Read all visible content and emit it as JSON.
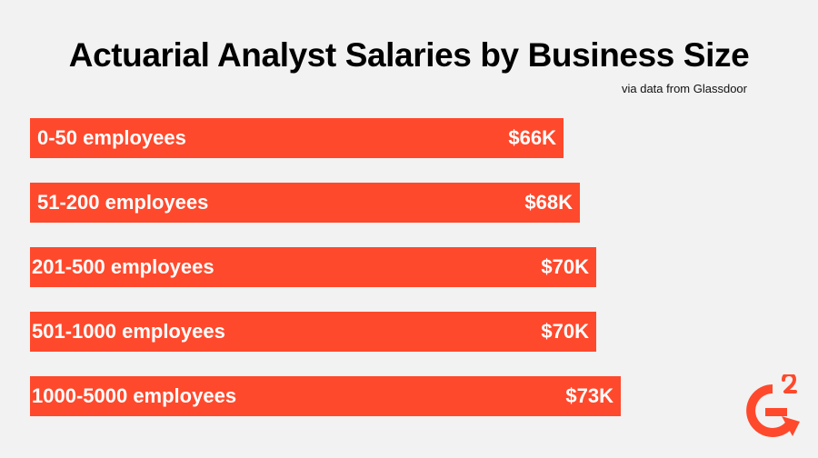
{
  "chart_data": {
    "type": "bar",
    "orientation": "horizontal",
    "title": "Actuarial Analyst Salaries by Business Size",
    "subtitle": "via data from Glassdoor",
    "categories": [
      "0-50 employees",
      "51-200 employees",
      "201-500 employees",
      "501-1000 employees",
      "1000-5000 employees"
    ],
    "values": [
      66,
      68,
      70,
      70,
      73
    ],
    "value_labels": [
      "$66K",
      "$68K",
      "$70K",
      "$70K",
      "$73K"
    ],
    "bar_color": "#ff492c"
  },
  "logo": {
    "icon": "g2-logo-icon",
    "color": "#ff492c"
  }
}
